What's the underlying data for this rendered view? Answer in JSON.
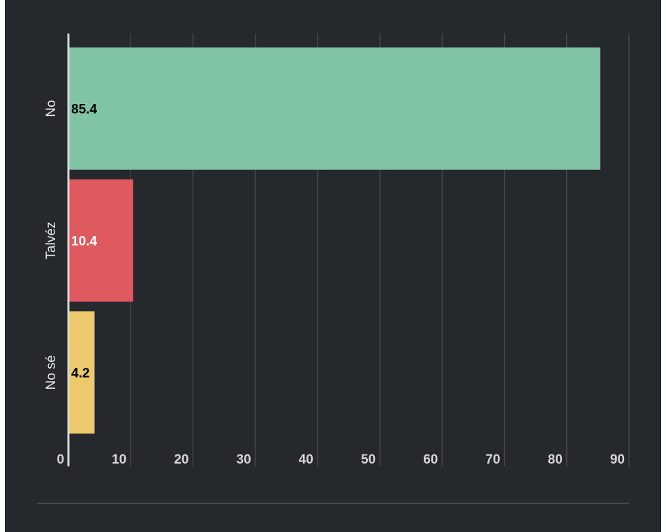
{
  "chart_data": {
    "type": "bar",
    "orientation": "horizontal",
    "categories": [
      "No",
      "Talvéz",
      "No sé"
    ],
    "values": [
      85.4,
      10.4,
      4.2
    ],
    "colors": [
      "#80c3a5",
      "#df5a5e",
      "#edc96e"
    ],
    "label_colors": [
      "#000000",
      "#ffffff",
      "#000000"
    ],
    "xlim": [
      0,
      90
    ],
    "x_ticks": [
      0,
      10,
      20,
      30,
      40,
      50,
      60,
      70,
      80,
      90
    ],
    "grid": true,
    "title": "",
    "xlabel": "",
    "ylabel": "",
    "background": "#25282c",
    "grid_color": "#45484c",
    "axis_color": "#d8d8d8"
  }
}
